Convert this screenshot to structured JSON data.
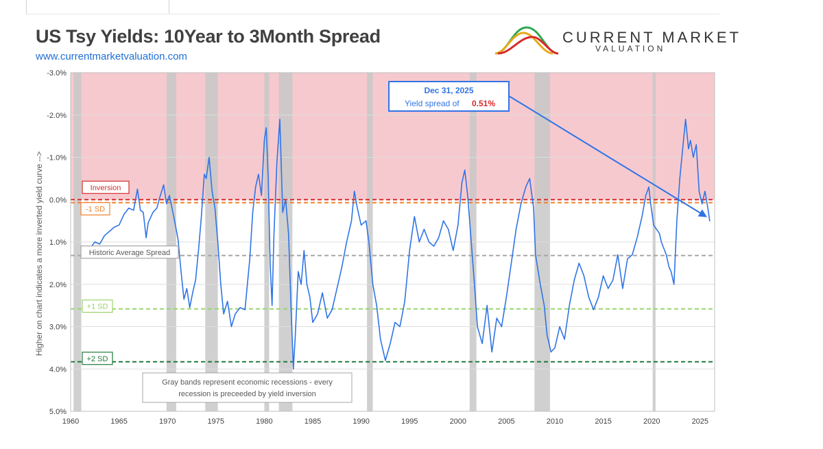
{
  "header": {
    "title": "US Tsy Yields: 10Year to 3Month Spread",
    "url": "www.currentmarketvaluation.com",
    "logo_name": "CURRENT MARKET",
    "logo_sub": "VALUATION"
  },
  "chart_data": {
    "type": "line",
    "title": "US Tsy Yields: 10Year to 3Month Spread",
    "ylabel": "Higher on chart indicates a more inverted yield curve -->",
    "xlabel": "",
    "y_inverted": true,
    "ylim": [
      -3.0,
      5.0
    ],
    "xlim": [
      1960,
      2026.5
    ],
    "x_ticks": [
      "1960",
      "1965",
      "1970",
      "1975",
      "1980",
      "1985",
      "1990",
      "1995",
      "2000",
      "2005",
      "2010",
      "2015",
      "2020",
      "2025"
    ],
    "y_ticks": [
      {
        "v": -3,
        "label": "-3.0%"
      },
      {
        "v": -2,
        "label": "-2.0%"
      },
      {
        "v": -1,
        "label": "-1.0%"
      },
      {
        "v": 0,
        "label": "0.0%"
      },
      {
        "v": 1,
        "label": "1.0%"
      },
      {
        "v": 2,
        "label": "2.0%"
      },
      {
        "v": 3,
        "label": "3.0%"
      },
      {
        "v": 4,
        "label": "4.0%"
      },
      {
        "v": 5,
        "label": "5.0%"
      }
    ],
    "grid": true,
    "series": [
      {
        "color": "#2f74e6",
        "points": [
          [
            1962.0,
            1.15
          ],
          [
            1962.5,
            1.0
          ],
          [
            1963.0,
            1.05
          ],
          [
            1963.5,
            0.85
          ],
          [
            1964.0,
            0.75
          ],
          [
            1964.5,
            0.65
          ],
          [
            1965.0,
            0.6
          ],
          [
            1965.5,
            0.35
          ],
          [
            1966.0,
            0.2
          ],
          [
            1966.5,
            0.25
          ],
          [
            1966.9,
            -0.25
          ],
          [
            1967.2,
            0.25
          ],
          [
            1967.5,
            0.3
          ],
          [
            1967.8,
            0.9
          ],
          [
            1968.0,
            0.55
          ],
          [
            1968.5,
            0.3
          ],
          [
            1968.9,
            0.2
          ],
          [
            1969.2,
            -0.05
          ],
          [
            1969.6,
            -0.35
          ],
          [
            1969.9,
            0.1
          ],
          [
            1970.2,
            -0.1
          ],
          [
            1970.6,
            0.35
          ],
          [
            1970.9,
            0.7
          ],
          [
            1971.1,
            0.95
          ],
          [
            1971.4,
            1.7
          ],
          [
            1971.7,
            2.35
          ],
          [
            1972.0,
            2.1
          ],
          [
            1972.3,
            2.55
          ],
          [
            1972.6,
            2.2
          ],
          [
            1972.9,
            1.9
          ],
          [
            1973.2,
            1.2
          ],
          [
            1973.5,
            0.4
          ],
          [
            1973.8,
            -0.6
          ],
          [
            1974.0,
            -0.5
          ],
          [
            1974.3,
            -1.0
          ],
          [
            1974.6,
            -0.2
          ],
          [
            1974.9,
            0.2
          ],
          [
            1975.2,
            1.0
          ],
          [
            1975.5,
            2.0
          ],
          [
            1975.8,
            2.7
          ],
          [
            1976.2,
            2.4
          ],
          [
            1976.6,
            3.0
          ],
          [
            1977.0,
            2.7
          ],
          [
            1977.5,
            2.55
          ],
          [
            1978.0,
            2.6
          ],
          [
            1978.5,
            1.4
          ],
          [
            1978.8,
            0.3
          ],
          [
            1979.1,
            -0.3
          ],
          [
            1979.4,
            -0.6
          ],
          [
            1979.7,
            -0.1
          ],
          [
            1980.0,
            -1.4
          ],
          [
            1980.2,
            -1.7
          ],
          [
            1980.4,
            -0.5
          ],
          [
            1980.6,
            1.5
          ],
          [
            1980.8,
            2.5
          ],
          [
            1981.0,
            0.8
          ],
          [
            1981.3,
            -0.9
          ],
          [
            1981.6,
            -1.9
          ],
          [
            1981.9,
            0.3
          ],
          [
            1982.2,
            0.0
          ],
          [
            1982.5,
            0.8
          ],
          [
            1982.8,
            2.8
          ],
          [
            1983.0,
            4.0
          ],
          [
            1983.2,
            3.2
          ],
          [
            1983.5,
            1.7
          ],
          [
            1983.8,
            2.0
          ],
          [
            1984.1,
            1.2
          ],
          [
            1984.4,
            2.0
          ],
          [
            1984.7,
            2.3
          ],
          [
            1985.0,
            2.9
          ],
          [
            1985.5,
            2.7
          ],
          [
            1986.0,
            2.2
          ],
          [
            1986.5,
            2.8
          ],
          [
            1987.0,
            2.6
          ],
          [
            1987.5,
            2.1
          ],
          [
            1988.0,
            1.6
          ],
          [
            1988.5,
            1.0
          ],
          [
            1989.0,
            0.5
          ],
          [
            1989.3,
            -0.2
          ],
          [
            1989.6,
            0.2
          ],
          [
            1990.0,
            0.6
          ],
          [
            1990.5,
            0.5
          ],
          [
            1990.8,
            1.0
          ],
          [
            1991.2,
            2.0
          ],
          [
            1991.6,
            2.5
          ],
          [
            1992.0,
            3.3
          ],
          [
            1992.5,
            3.8
          ],
          [
            1993.0,
            3.4
          ],
          [
            1993.5,
            2.9
          ],
          [
            1994.0,
            3.0
          ],
          [
            1994.5,
            2.4
          ],
          [
            1995.0,
            1.2
          ],
          [
            1995.5,
            0.4
          ],
          [
            1996.0,
            1.0
          ],
          [
            1996.5,
            0.7
          ],
          [
            1997.0,
            1.0
          ],
          [
            1997.5,
            1.1
          ],
          [
            1998.0,
            0.9
          ],
          [
            1998.5,
            0.5
          ],
          [
            1999.0,
            0.7
          ],
          [
            1999.5,
            1.2
          ],
          [
            2000.0,
            0.6
          ],
          [
            2000.4,
            -0.4
          ],
          [
            2000.7,
            -0.7
          ],
          [
            2001.0,
            -0.1
          ],
          [
            2001.3,
            0.8
          ],
          [
            2001.7,
            2.0
          ],
          [
            2002.0,
            3.0
          ],
          [
            2002.5,
            3.4
          ],
          [
            2003.0,
            2.5
          ],
          [
            2003.5,
            3.6
          ],
          [
            2004.0,
            2.8
          ],
          [
            2004.5,
            3.0
          ],
          [
            2005.0,
            2.3
          ],
          [
            2005.5,
            1.5
          ],
          [
            2006.0,
            0.7
          ],
          [
            2006.5,
            0.1
          ],
          [
            2007.0,
            -0.3
          ],
          [
            2007.4,
            -0.5
          ],
          [
            2007.8,
            0.2
          ],
          [
            2008.0,
            1.3
          ],
          [
            2008.5,
            2.0
          ],
          [
            2008.9,
            2.5
          ],
          [
            2009.2,
            3.2
          ],
          [
            2009.6,
            3.6
          ],
          [
            2010.0,
            3.5
          ],
          [
            2010.5,
            3.0
          ],
          [
            2011.0,
            3.3
          ],
          [
            2011.5,
            2.5
          ],
          [
            2012.0,
            1.9
          ],
          [
            2012.5,
            1.5
          ],
          [
            2013.0,
            1.8
          ],
          [
            2013.5,
            2.3
          ],
          [
            2014.0,
            2.6
          ],
          [
            2014.5,
            2.3
          ],
          [
            2015.0,
            1.8
          ],
          [
            2015.5,
            2.1
          ],
          [
            2016.0,
            1.9
          ],
          [
            2016.5,
            1.3
          ],
          [
            2017.0,
            2.1
          ],
          [
            2017.5,
            1.4
          ],
          [
            2018.0,
            1.3
          ],
          [
            2018.5,
            0.9
          ],
          [
            2019.0,
            0.4
          ],
          [
            2019.4,
            -0.1
          ],
          [
            2019.7,
            -0.3
          ],
          [
            2019.9,
            0.1
          ],
          [
            2020.2,
            0.6
          ],
          [
            2020.5,
            0.7
          ],
          [
            2020.8,
            0.8
          ],
          [
            2021.0,
            1.0
          ],
          [
            2021.5,
            1.3
          ],
          [
            2021.8,
            1.6
          ],
          [
            2022.0,
            1.7
          ],
          [
            2022.3,
            2.0
          ],
          [
            2022.6,
            0.5
          ],
          [
            2022.9,
            -0.5
          ],
          [
            2023.2,
            -1.2
          ],
          [
            2023.5,
            -1.9
          ],
          [
            2023.8,
            -1.2
          ],
          [
            2024.0,
            -1.4
          ],
          [
            2024.3,
            -1.0
          ],
          [
            2024.6,
            -1.3
          ],
          [
            2024.9,
            -0.2
          ],
          [
            2025.2,
            0.1
          ],
          [
            2025.5,
            -0.2
          ],
          [
            2025.8,
            0.2
          ],
          [
            2026.0,
            0.51
          ]
        ]
      }
    ],
    "recessions": [
      [
        1960.3,
        1961.1
      ],
      [
        1969.9,
        1970.9
      ],
      [
        1973.9,
        1975.2
      ],
      [
        1980.0,
        1980.5
      ],
      [
        1981.5,
        1982.9
      ],
      [
        1990.6,
        1991.2
      ],
      [
        2001.2,
        2001.9
      ],
      [
        2007.9,
        2009.5
      ],
      [
        2020.1,
        2020.4
      ]
    ],
    "reference_lines": [
      {
        "name": "Inversion",
        "value": 0.0,
        "color": "#d62b2b",
        "label": "Inversion"
      },
      {
        "name": "-1 SD",
        "value": 0.07,
        "color": "#f0802c",
        "label": "-1 SD"
      },
      {
        "name": "Historic Average Spread",
        "value": 1.32,
        "color": "#a6a6a6",
        "label": "Historic Average Spread"
      },
      {
        "name": "+1 SD",
        "value": 2.58,
        "color": "#9ad46b",
        "label": "+1 SD"
      },
      {
        "name": "+2 SD",
        "value": 3.83,
        "color": "#1e7a3a",
        "label": "+2 SD"
      }
    ],
    "annotation": {
      "date": "Dec 31, 2025",
      "text": "Yield spread of",
      "value": "0.51%",
      "target_x": 2026.0,
      "target_y": 0.51
    },
    "note": [
      "Gray bands represent economic recessions - every",
      "recession is preceeded by yield inversion"
    ]
  }
}
